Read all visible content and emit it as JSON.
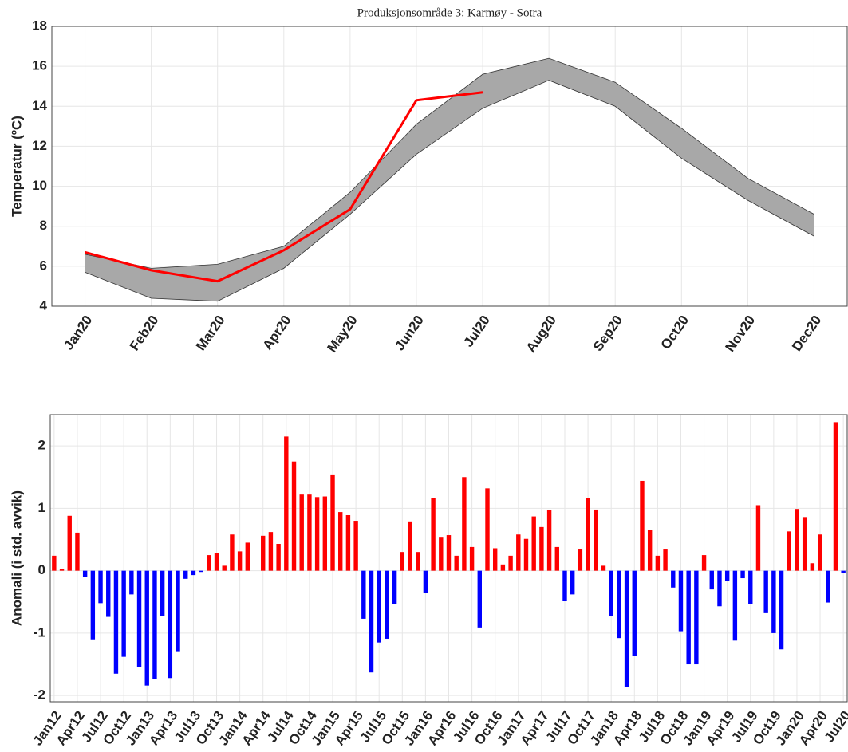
{
  "chart_data": [
    {
      "type": "line",
      "title": "Produksjonsområde 3: Karmøy - Sotra",
      "y_label": "Temperatur (ºC)",
      "categories": [
        "Jan20",
        "Feb20",
        "Mar20",
        "Apr20",
        "May20",
        "Jun20",
        "Jul20",
        "Aug20",
        "Sep20",
        "Oct20",
        "Nov20",
        "Dec20"
      ],
      "band_upper": [
        6.6,
        5.9,
        6.1,
        7.0,
        9.7,
        13.1,
        15.6,
        16.4,
        15.2,
        12.9,
        10.4,
        8.6
      ],
      "band_lower": [
        5.7,
        4.4,
        4.25,
        5.9,
        8.6,
        11.6,
        13.9,
        15.3,
        14.0,
        11.4,
        9.3,
        7.5
      ],
      "band_color": "#a8a8a8",
      "values": [
        6.7,
        5.8,
        5.25,
        6.8,
        8.85,
        14.3,
        14.7,
        null,
        null,
        null,
        null,
        null
      ],
      "color": "#ff0000",
      "ylim": [
        4,
        18
      ],
      "yticks": [
        4,
        6,
        8,
        10,
        12,
        14,
        16,
        18
      ],
      "grid": true
    },
    {
      "type": "bar",
      "y_label": "Anomali (i std. avvik)",
      "categories": [
        "Jan12",
        null,
        null,
        "Apr12",
        null,
        null,
        "Jul12",
        null,
        null,
        "Oct12",
        null,
        null,
        "Jan13",
        null,
        null,
        "Apr13",
        null,
        null,
        "Jul13",
        null,
        null,
        "Oct13",
        null,
        null,
        "Jan14",
        null,
        null,
        "Apr14",
        null,
        null,
        "Jul14",
        null,
        null,
        "Oct14",
        null,
        null,
        "Jan15",
        null,
        null,
        "Apr15",
        null,
        null,
        "Jul15",
        null,
        null,
        "Oct15",
        null,
        null,
        "Jan16",
        null,
        null,
        "Apr16",
        null,
        null,
        "Jul16",
        null,
        null,
        "Oct16",
        null,
        null,
        "Jan17",
        null,
        null,
        "Apr17",
        null,
        null,
        "Jul17",
        null,
        null,
        "Oct17",
        null,
        null,
        "Jan18",
        null,
        null,
        "Apr18",
        null,
        null,
        "Jul18",
        null,
        null,
        "Oct18",
        null,
        null,
        "Jan19",
        null,
        null,
        "Apr19",
        null,
        null,
        "Jul19",
        null,
        null,
        "Oct19",
        null,
        null,
        "Jan20",
        null,
        null,
        "Apr20",
        null,
        null,
        "Jul20"
      ],
      "values": [
        0.24,
        0.03,
        0.88,
        0.61,
        -0.1,
        -1.1,
        -0.52,
        -0.74,
        -1.65,
        -1.38,
        -0.38,
        -1.55,
        -1.84,
        -1.74,
        -0.73,
        -1.72,
        -1.29,
        -0.13,
        -0.07,
        -0.02,
        0.25,
        0.28,
        0.08,
        0.58,
        0.31,
        0.45,
        0,
        0.56,
        0.62,
        0.43,
        2.15,
        1.75,
        1.22,
        1.22,
        1.18,
        1.19,
        1.53,
        0.94,
        0.89,
        0.8,
        -0.77,
        -1.63,
        -1.15,
        -1.09,
        -0.54,
        0.3,
        0.79,
        0.3,
        -0.35,
        1.16,
        0.53,
        0.57,
        0.24,
        1.5,
        0.38,
        -0.91,
        1.32,
        0.36,
        0.1,
        0.24,
        0.58,
        0.51,
        0.87,
        0.7,
        0.97,
        0.38,
        -0.49,
        -0.38,
        0.34,
        1.16,
        0.98,
        0.08,
        -0.73,
        -1.08,
        -1.87,
        -1.36,
        1.44,
        0.66,
        0.24,
        0.34,
        -0.27,
        -0.97,
        -1.5,
        -1.5,
        0.25,
        -0.3,
        -0.57,
        -0.17,
        -1.12,
        -0.12,
        -0.53,
        1.05,
        -0.68,
        -1.0,
        -1.26,
        0.63,
        0.99,
        0.86,
        0.12,
        0.58,
        -0.51,
        2.38,
        -0.03
      ],
      "positive_color": "#ff0000",
      "negative_color": "#0000ff",
      "ylim": [
        -2.1,
        2.5
      ],
      "yticks": [
        -2,
        -1,
        0,
        1,
        2
      ],
      "grid": true
    }
  ]
}
